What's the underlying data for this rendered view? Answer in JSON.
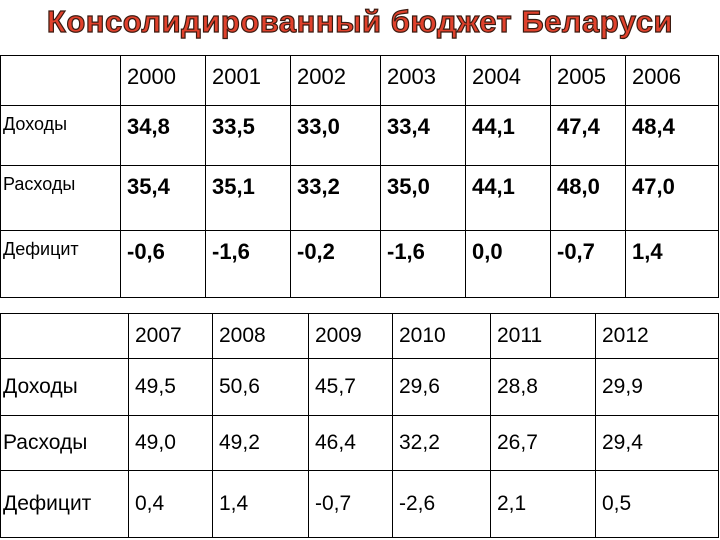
{
  "title": "Консолидированный бюджет Беларуси",
  "tables": [
    {
      "years": [
        "2000",
        "2001",
        "2002",
        "2003",
        "2004",
        "2005",
        "2006"
      ],
      "rows": [
        {
          "label": "Доходы",
          "values": [
            "34,8",
            "33,5",
            "33,0",
            "33,4",
            "44,1",
            "47,4",
            "48,4"
          ]
        },
        {
          "label": "Расходы",
          "values": [
            "35,4",
            "35,1",
            "33,2",
            "35,0",
            "44,1",
            "48,0",
            "47,0"
          ]
        },
        {
          "label": "Дефицит",
          "values": [
            "-0,6",
            "-1,6",
            "-0,2",
            "-1,6",
            "0,0",
            "-0,7",
            "1,4"
          ]
        }
      ]
    },
    {
      "years": [
        "2007",
        "2008",
        "2009",
        "2010",
        "2011",
        "2012"
      ],
      "rows": [
        {
          "label": "Доходы",
          "values": [
            "49,5",
            "50,6",
            "45,7",
            "29,6",
            "28,8",
            "29,9"
          ]
        },
        {
          "label": "Расходы",
          "values": [
            "49,0",
            "49,2",
            "46,4",
            "32,2",
            "26,7",
            "29,4"
          ]
        },
        {
          "label": "Дефицит",
          "values": [
            "0,4",
            "1,4",
            "-0,7",
            "-2,6",
            "2,1",
            "0,5"
          ]
        }
      ]
    }
  ]
}
